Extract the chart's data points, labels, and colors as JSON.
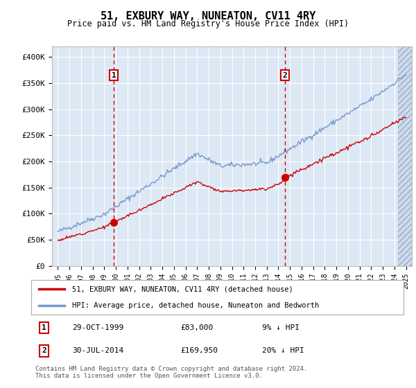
{
  "title": "51, EXBURY WAY, NUNEATON, CV11 4RY",
  "subtitle": "Price paid vs. HM Land Registry's House Price Index (HPI)",
  "ylim": [
    0,
    420000
  ],
  "yticks": [
    0,
    50000,
    100000,
    150000,
    200000,
    250000,
    300000,
    350000,
    400000
  ],
  "ytick_labels": [
    "£0",
    "£50K",
    "£100K",
    "£150K",
    "£200K",
    "£250K",
    "£300K",
    "£350K",
    "£400K"
  ],
  "sale1": {
    "date_str": "29-OCT-1999",
    "price": 83000,
    "note": "9% ↓ HPI",
    "year": 1999.83
  },
  "sale2": {
    "date_str": "30-JUL-2014",
    "price": 169950,
    "note": "20% ↓ HPI",
    "year": 2014.58
  },
  "legend_line1": "51, EXBURY WAY, NUNEATON, CV11 4RY (detached house)",
  "legend_line2": "HPI: Average price, detached house, Nuneaton and Bedworth",
  "footnote": "Contains HM Land Registry data © Crown copyright and database right 2024.\nThis data is licensed under the Open Government Licence v3.0.",
  "line_color_red": "#cc0000",
  "line_color_blue": "#7799cc",
  "background_plot": "#dde8f5",
  "grid_color": "#ffffff",
  "annotation_box_color": "#cc0000",
  "dashed_line_color": "#cc0000"
}
